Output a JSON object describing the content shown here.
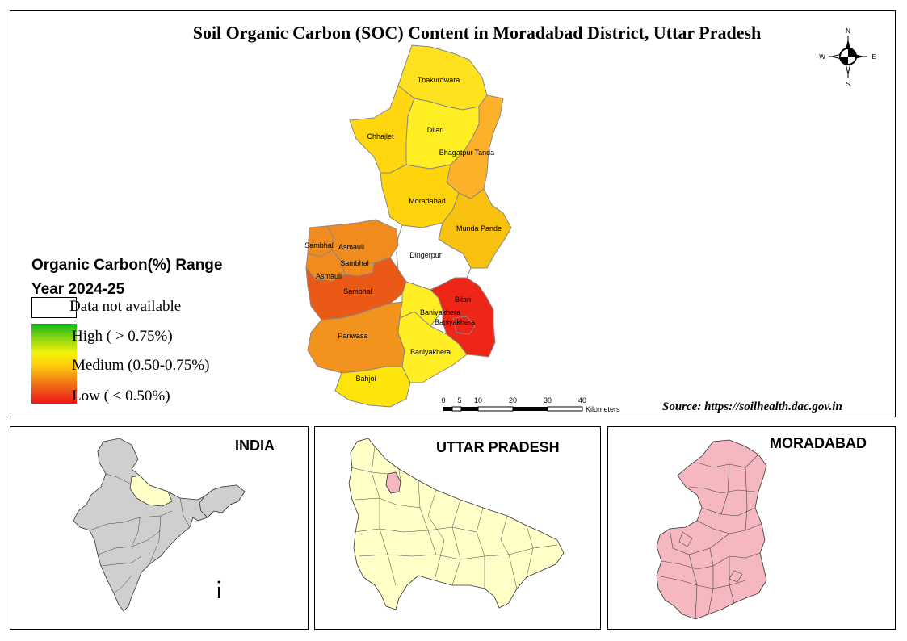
{
  "title": "Soil Organic Carbon (SOC) Content in Moradabad District, Uttar Pradesh",
  "legend": {
    "title_line1": "Organic Carbon(%) Range",
    "title_line2": "Year 2024-25",
    "no_data_label": "Data not available",
    "high_label": "High ( > 0.75%)",
    "medium_label": "Medium  (0.50-0.75%)",
    "low_label": "Low ( < 0.50%)"
  },
  "regions": [
    {
      "name": "Thakurdwara",
      "class": "medium",
      "color": "#ffe21f"
    },
    {
      "name": "Chhajlet",
      "class": "medium",
      "color": "#ffd60f"
    },
    {
      "name": "Dilari",
      "class": "medium",
      "color": "#ffee24"
    },
    {
      "name": "Bhagatpur Tanda",
      "class": "medium",
      "color": "#fdb12a"
    },
    {
      "name": "Moradabad",
      "class": "medium",
      "color": "#ffd40c"
    },
    {
      "name": "Munda Pande",
      "class": "medium",
      "color": "#f8c00f"
    },
    {
      "name": "Dingerpur",
      "class": "no-data",
      "color": "#ffffff"
    },
    {
      "name": "Sambhal",
      "class": "low-medium",
      "color": "#f28b1d"
    },
    {
      "name": "Asmauli",
      "class": "low-medium",
      "color": "#f28b1d"
    },
    {
      "name": "Sambhal",
      "class": "low-medium",
      "color": "#f28b1d"
    },
    {
      "name": "Asmauli",
      "class": "low-medium",
      "color": "#f28b1d"
    },
    {
      "name": "Sambhal",
      "class": "low",
      "color": "#ea5a16"
    },
    {
      "name": "Panwasa",
      "class": "low-medium",
      "color": "#f2931d"
    },
    {
      "name": "Bahjoi",
      "class": "medium",
      "color": "#ffe40c"
    },
    {
      "name": "Baniyakhera",
      "class": "medium",
      "color": "#ffee24"
    },
    {
      "name": "Baniyakhera",
      "class": "medium",
      "color": "#ffee24"
    },
    {
      "name": "Bilari",
      "class": "low",
      "color": "#ee2617"
    },
    {
      "name": "Baniyakhera",
      "class": "low",
      "color": "#ee2617"
    }
  ],
  "scale_bar": {
    "ticks": [
      "0",
      "5",
      "10",
      "20",
      "30",
      "40"
    ],
    "unit": "Kilometers"
  },
  "north_arrow": {
    "n": "N",
    "s": "S",
    "e": "E",
    "w": "W"
  },
  "source": "Source: https://soilhealth.dac.gov.in",
  "insets": {
    "india": "INDIA",
    "up": "UTTAR PRADESH",
    "moradabad": "MORADABAD"
  },
  "colors": {
    "high": "#11b516",
    "medium": "#ffd40c",
    "low": "#ee1717",
    "india_fill": "#cfcfcf",
    "up_fill": "#ffffc8",
    "moradabad_fill": "#f5b8c0"
  }
}
